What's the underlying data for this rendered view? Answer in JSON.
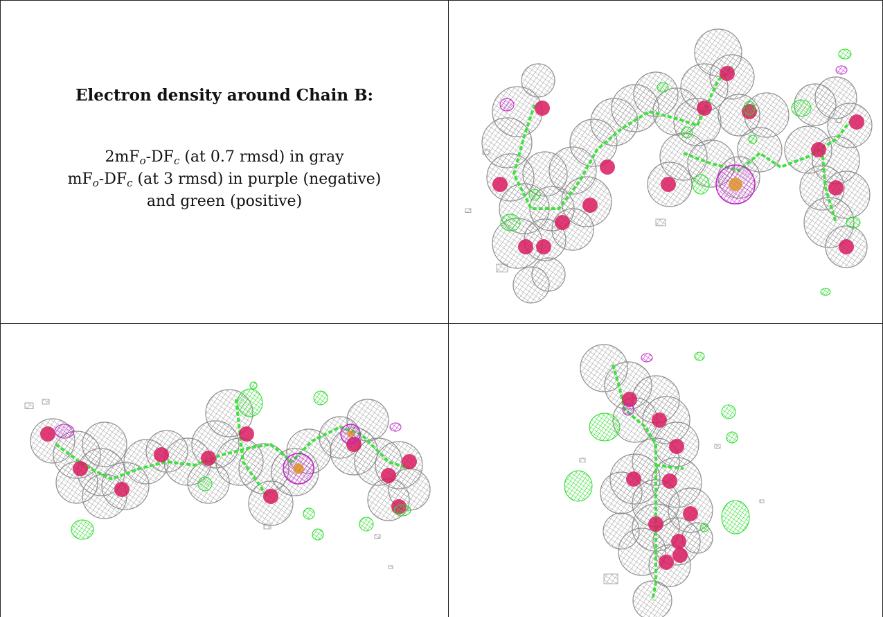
{
  "caption": {
    "heading": "Electron density around Chain B:",
    "line1": {
      "a": "2mF",
      "sub1": "o",
      "b": "-DF",
      "sub2": "c",
      "rest": " (at 0.7 rmsd) in gray"
    },
    "line2": {
      "a": "mF",
      "sub1": "o",
      "b": "-DF",
      "sub2": "c",
      "rest": " (at 3 rmsd) in purple (negative)"
    },
    "line3": "and green (positive)"
  },
  "colors": {
    "map_2fofc": "#9a9a9a",
    "map_negative": "#c020c8",
    "map_positive": "#22dd22",
    "oxygen": "#d81b60",
    "carbon_stick": "#40e040",
    "metal": "#e09020"
  }
}
